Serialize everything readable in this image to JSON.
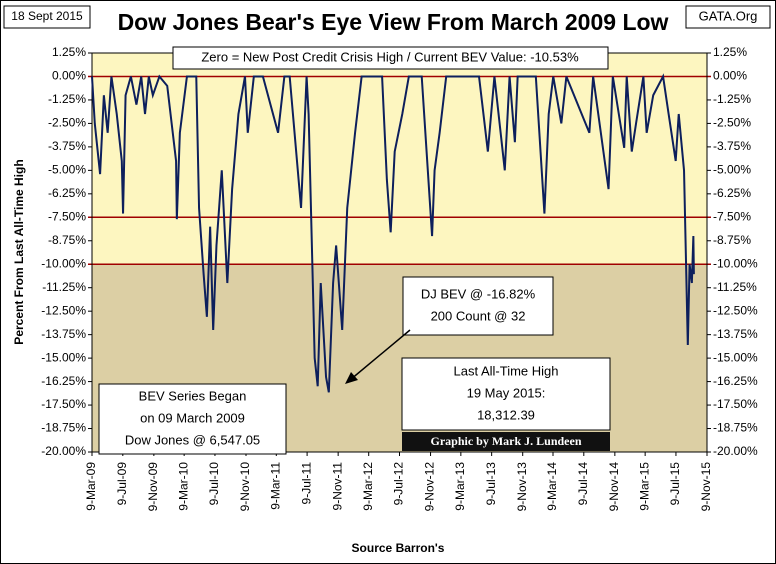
{
  "chart_data": {
    "type": "line",
    "title": "Dow Jones Bear's Eye View From March 2009 Low",
    "date_label": "18 Sept 2015",
    "source_site": "GATA.Org",
    "x_label": "Source Barron's",
    "y_label": "Percent From Last All-Time High",
    "annotations": {
      "header": "Zero = New Post Credit Crisis High / Current BEV Value:  -10.53%",
      "bev_low": [
        "DJ BEV @ -16.82%",
        "200 Count @ 32"
      ],
      "last_high": [
        "Last All-Time High",
        "19 May 2015:",
        "18,312.39"
      ],
      "series_began": [
        "BEV Series Began",
        "on 09 March 2009",
        "Dow Jones @ 6,547.05"
      ],
      "credit": "Graphic by Mark J. Lundeen"
    },
    "series": [
      {
        "name": "DJ BEV",
        "color": "#0d1f5c",
        "x": [
          "2009-03-09",
          "2009-03-20",
          "2009-04-10",
          "2009-04-25",
          "2009-05-10",
          "2009-05-25",
          "2009-06-15",
          "2009-07-05",
          "2009-07-10",
          "2009-07-20",
          "2009-08-10",
          "2009-09-01",
          "2009-09-20",
          "2009-10-05",
          "2009-10-20",
          "2009-11-05",
          "2009-12-01",
          "2010-01-01",
          "2010-02-05",
          "2010-02-08",
          "2010-02-20",
          "2010-03-20",
          "2010-04-26",
          "2010-05-07",
          "2010-05-25",
          "2010-06-07",
          "2010-06-20",
          "2010-07-02",
          "2010-07-15",
          "2010-08-05",
          "2010-08-27",
          "2010-09-15",
          "2010-10-10",
          "2010-11-05",
          "2010-11-16",
          "2010-12-10",
          "2011-01-15",
          "2011-03-16",
          "2011-04-10",
          "2011-05-01",
          "2011-06-15",
          "2011-07-07",
          "2011-07-15",
          "2011-08-08",
          "2011-08-20",
          "2011-09-01",
          "2011-09-22",
          "2011-10-03",
          "2011-10-20",
          "2011-11-01",
          "2011-11-25",
          "2011-12-15",
          "2012-01-15",
          "2012-02-10",
          "2012-05-01",
          "2012-05-20",
          "2012-06-04",
          "2012-06-20",
          "2012-07-20",
          "2012-08-15",
          "2012-10-05",
          "2012-11-15",
          "2012-11-25",
          "2012-12-15",
          "2013-01-10",
          "2013-05-20",
          "2013-06-24",
          "2013-07-20",
          "2013-08-30",
          "2013-09-18",
          "2013-10-09",
          "2013-10-20",
          "2013-12-31",
          "2014-02-03",
          "2014-02-20",
          "2014-03-10",
          "2014-04-11",
          "2014-05-01",
          "2014-07-31",
          "2014-08-15",
          "2014-10-15",
          "2014-11-01",
          "2014-12-16",
          "2014-12-26",
          "2015-01-15",
          "2015-02-01",
          "2015-03-02",
          "2015-03-15",
          "2015-04-10",
          "2015-05-19",
          "2015-06-10",
          "2015-07-08",
          "2015-07-20",
          "2015-08-10",
          "2015-08-25",
          "2015-09-01",
          "2015-09-10",
          "2015-09-16",
          "2015-09-18"
        ],
        "values": [
          0,
          -2.5,
          -5.2,
          -1,
          -3,
          0,
          -2,
          -4.5,
          -7.3,
          -1,
          0,
          -1.5,
          0,
          -2,
          0,
          -1,
          0,
          -0.5,
          -4.5,
          -7.6,
          -3,
          0,
          0,
          -7,
          -10.5,
          -12.8,
          -8,
          -13.5,
          -9,
          -5,
          -11,
          -6,
          -2,
          0,
          -3,
          0,
          0,
          -3,
          0,
          0,
          -7,
          0,
          -2,
          -15,
          -16.5,
          -11,
          -16,
          -16.82,
          -11,
          -9,
          -13.5,
          -7,
          -3,
          0,
          0,
          -5.5,
          -8.3,
          -4,
          -2,
          0,
          0,
          -8.5,
          -5,
          -3,
          0,
          0,
          -4,
          0,
          -5,
          0,
          -3.5,
          0,
          0,
          -7.3,
          -2,
          0,
          -2.5,
          0,
          -3,
          0,
          -6,
          0,
          -3.8,
          0,
          -4,
          -2.5,
          0,
          -3,
          -1,
          0,
          -2,
          -4.5,
          -2,
          -5,
          -14.3,
          -10,
          -11,
          -8.5,
          -10.53
        ]
      }
    ],
    "xlim": [
      "2009-03-09",
      "2015-11-09"
    ],
    "xticks": [
      {
        "value": "2009-03-09",
        "label": "9-Mar-09"
      },
      {
        "value": "2009-07-09",
        "label": "9-Jul-09"
      },
      {
        "value": "2009-11-09",
        "label": "9-Nov-09"
      },
      {
        "value": "2010-03-09",
        "label": "9-Mar-10"
      },
      {
        "value": "2010-07-09",
        "label": "9-Jul-10"
      },
      {
        "value": "2010-11-09",
        "label": "9-Nov-10"
      },
      {
        "value": "2011-03-09",
        "label": "9-Mar-11"
      },
      {
        "value": "2011-07-09",
        "label": "9-Jul-11"
      },
      {
        "value": "2011-11-09",
        "label": "9-Nov-11"
      },
      {
        "value": "2012-03-09",
        "label": "9-Mar-12"
      },
      {
        "value": "2012-07-09",
        "label": "9-Jul-12"
      },
      {
        "value": "2012-11-09",
        "label": "9-Nov-12"
      },
      {
        "value": "2013-03-09",
        "label": "9-Mar-13"
      },
      {
        "value": "2013-07-09",
        "label": "9-Jul-13"
      },
      {
        "value": "2013-11-09",
        "label": "9-Nov-13"
      },
      {
        "value": "2014-03-09",
        "label": "9-Mar-14"
      },
      {
        "value": "2014-07-09",
        "label": "9-Jul-14"
      },
      {
        "value": "2014-11-09",
        "label": "9-Nov-14"
      },
      {
        "value": "2015-03-09",
        "label": "9-Mar-15"
      },
      {
        "value": "2015-07-09",
        "label": "9-Jul-15"
      },
      {
        "value": "2015-11-09",
        "label": "9-Nov-15"
      }
    ],
    "ylim": [
      -20,
      1.25
    ],
    "yticks": [
      {
        "value": 1.25,
        "label": "1.25%"
      },
      {
        "value": 0,
        "label": "0.00%"
      },
      {
        "value": -1.25,
        "label": "-1.25%"
      },
      {
        "value": -2.5,
        "label": "-2.50%"
      },
      {
        "value": -3.75,
        "label": "-3.75%"
      },
      {
        "value": -5,
        "label": "-5.00%"
      },
      {
        "value": -6.25,
        "label": "-6.25%"
      },
      {
        "value": -7.5,
        "label": "-7.50%"
      },
      {
        "value": -8.75,
        "label": "-8.75%"
      },
      {
        "value": -10,
        "label": "-10.00%"
      },
      {
        "value": -11.25,
        "label": "-11.25%"
      },
      {
        "value": -12.5,
        "label": "-12.50%"
      },
      {
        "value": -13.75,
        "label": "-13.75%"
      },
      {
        "value": -15,
        "label": "-15.00%"
      },
      {
        "value": -16.25,
        "label": "-16.25%"
      },
      {
        "value": -17.5,
        "label": "-17.50%"
      },
      {
        "value": -18.75,
        "label": "-18.75%"
      },
      {
        "value": -20,
        "label": "-20.00%"
      }
    ],
    "reference_lines": [
      0,
      -7.5,
      -10
    ],
    "reference_color": "#a00000",
    "shade_split": -10,
    "upper_color": "#fdf6c0",
    "lower_color": "#dccfa4"
  }
}
